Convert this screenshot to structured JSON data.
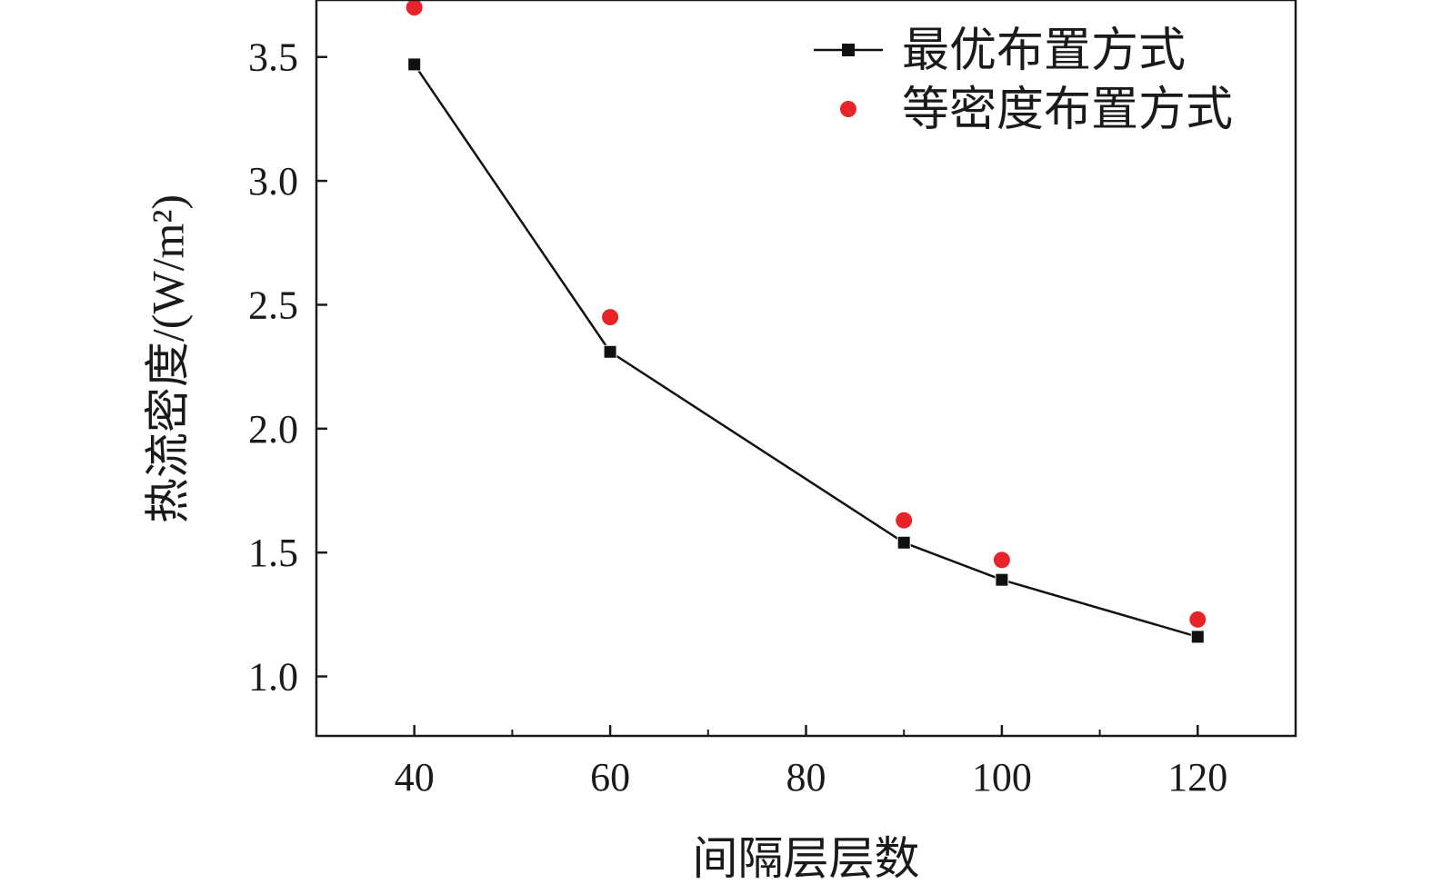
{
  "chart_data": {
    "type": "scatter",
    "title": "",
    "xlabel": "间隔层层数",
    "ylabel": "热流密度/(W/m²)",
    "xlim": [
      30,
      130
    ],
    "ylim": [
      0.76,
      3.73
    ],
    "x_ticks": [
      40,
      60,
      80,
      100,
      120
    ],
    "y_ticks": [
      1.0,
      1.5,
      2.0,
      2.5,
      3.0,
      3.5
    ],
    "x_tick_labels": [
      "40",
      "60",
      "80",
      "100",
      "120"
    ],
    "y_tick_labels": [
      "1.0",
      "1.5",
      "2.0",
      "2.5",
      "3.0",
      "3.5"
    ],
    "minor_x_ticks": [
      50,
      70,
      90,
      110
    ],
    "grid": false,
    "legend_position": "top-right",
    "series": [
      {
        "name": "最优布置方式",
        "marker": "square",
        "line": true,
        "color": "#111111",
        "x": [
          40,
          60,
          90,
          100,
          120
        ],
        "y": [
          3.47,
          2.31,
          1.54,
          1.39,
          1.16
        ]
      },
      {
        "name": "等密度布置方式",
        "marker": "circle",
        "line": false,
        "color": "#e8242a",
        "x": [
          40,
          60,
          90,
          100,
          120
        ],
        "y": [
          3.7,
          2.45,
          1.63,
          1.47,
          1.23
        ]
      }
    ]
  }
}
